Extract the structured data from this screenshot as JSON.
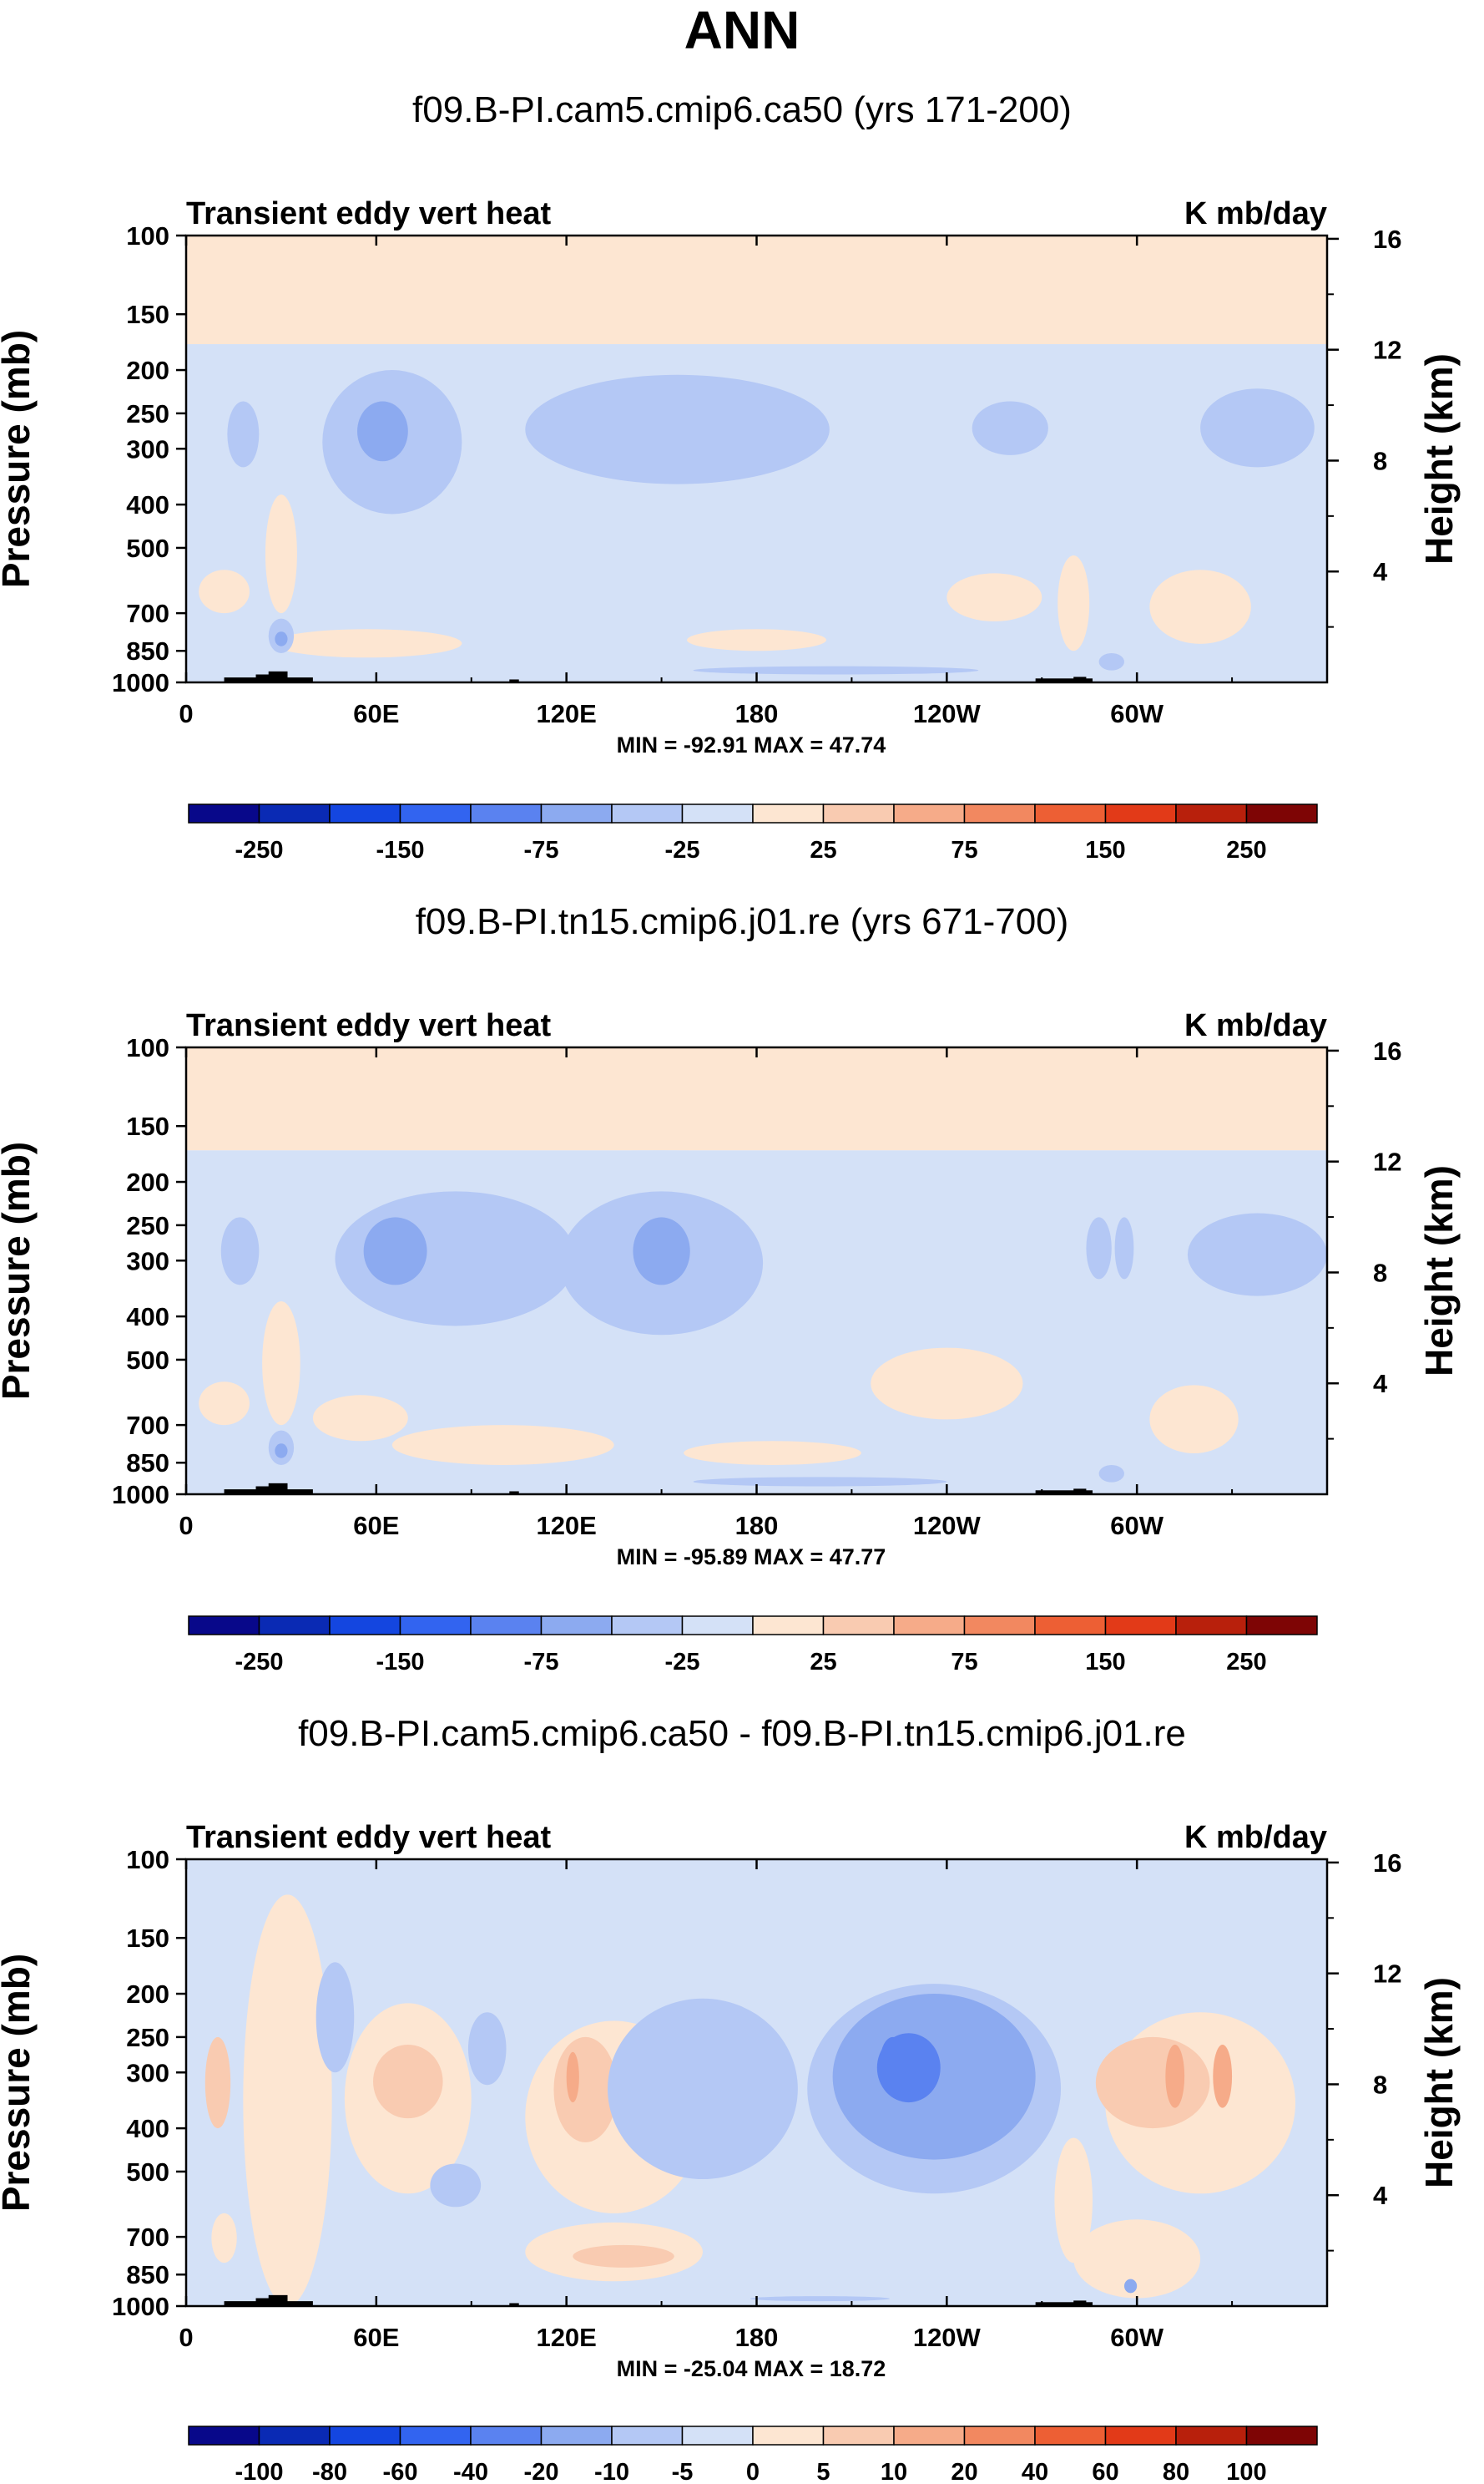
{
  "figure": {
    "title": "ANN"
  },
  "chart_data": [
    {
      "type": "heatmap",
      "title": "f09.B-PI.cam5.cmip6.ca50 (yrs 171-200)",
      "left_string": "Transient eddy vert heat",
      "right_string": "K mb/day",
      "x_tick_labels": [
        "0",
        "60E",
        "120E",
        "180",
        "120W",
        "60W"
      ],
      "x_range": [
        0,
        360
      ],
      "y_label": "Pressure (mb)",
      "y_tick_labels": [
        "100",
        "150",
        "200",
        "250",
        "300",
        "400",
        "500",
        "700",
        "850",
        "1000"
      ],
      "y_range": [
        1000,
        100
      ],
      "y2_label": "Height (km)",
      "y2_tick_labels": [
        "16",
        "12",
        "8",
        "4"
      ],
      "stats": "MIN = -92.91  MAX =  47.74",
      "min": -92.91,
      "max": 47.74,
      "colorbar_levels": [
        -300,
        -250,
        -200,
        -150,
        -100,
        -75,
        -50,
        -25,
        0,
        25,
        50,
        75,
        100,
        150,
        200,
        250,
        300
      ],
      "colorbar_labels": [
        "-250",
        "-150",
        "-75",
        "-25",
        "25",
        "75",
        "150",
        "250"
      ]
    },
    {
      "type": "heatmap",
      "title": "f09.B-PI.tn15.cmip6.j01.re (yrs 671-700)",
      "left_string": "Transient eddy vert heat",
      "right_string": "K mb/day",
      "x_tick_labels": [
        "0",
        "60E",
        "120E",
        "180",
        "120W",
        "60W"
      ],
      "x_range": [
        0,
        360
      ],
      "y_label": "Pressure (mb)",
      "y_tick_labels": [
        "100",
        "150",
        "200",
        "250",
        "300",
        "400",
        "500",
        "700",
        "850",
        "1000"
      ],
      "y_range": [
        1000,
        100
      ],
      "y2_label": "Height (km)",
      "y2_tick_labels": [
        "16",
        "12",
        "8",
        "4"
      ],
      "stats": "MIN = -95.89  MAX =  47.77",
      "min": -95.89,
      "max": 47.77,
      "colorbar_levels": [
        -300,
        -250,
        -200,
        -150,
        -100,
        -75,
        -50,
        -25,
        0,
        25,
        50,
        75,
        100,
        150,
        200,
        250,
        300
      ],
      "colorbar_labels": [
        "-250",
        "-150",
        "-75",
        "-25",
        "25",
        "75",
        "150",
        "250"
      ]
    },
    {
      "type": "heatmap",
      "title": "f09.B-PI.cam5.cmip6.ca50 - f09.B-PI.tn15.cmip6.j01.re",
      "left_string": "Transient eddy vert heat",
      "right_string": "K mb/day",
      "x_tick_labels": [
        "0",
        "60E",
        "120E",
        "180",
        "120W",
        "60W"
      ],
      "x_range": [
        0,
        360
      ],
      "y_label": "Pressure (mb)",
      "y_tick_labels": [
        "100",
        "150",
        "200",
        "250",
        "300",
        "400",
        "500",
        "700",
        "850",
        "1000"
      ],
      "y_range": [
        1000,
        100
      ],
      "y2_label": "Height (km)",
      "y2_tick_labels": [
        "16",
        "12",
        "8",
        "4"
      ],
      "stats": "MIN = -25.04  MAX =  18.72",
      "min": -25.04,
      "max": 18.72,
      "colorbar_levels": [
        -120,
        -100,
        -80,
        -60,
        -40,
        -20,
        -10,
        -5,
        0,
        5,
        10,
        20,
        40,
        60,
        80,
        100,
        120
      ],
      "colorbar_labels": [
        "-100",
        "-80",
        "-60",
        "-40",
        "-20",
        "-10",
        "-5",
        "0",
        "5",
        "10",
        "20",
        "40",
        "60",
        "80",
        "100"
      ]
    }
  ],
  "colors": {
    "palette": [
      "#08088a",
      "#0a2ab4",
      "#1446e0",
      "#3264f0",
      "#5a82f0",
      "#8caaf0",
      "#b4c8f5",
      "#d4e1f7",
      "#fde6d2",
      "#f9cbb1",
      "#f6ab89",
      "#f28860",
      "#ed5f34",
      "#e23a18",
      "#b8200c",
      "#7e0505"
    ],
    "terrain": "#000000"
  }
}
